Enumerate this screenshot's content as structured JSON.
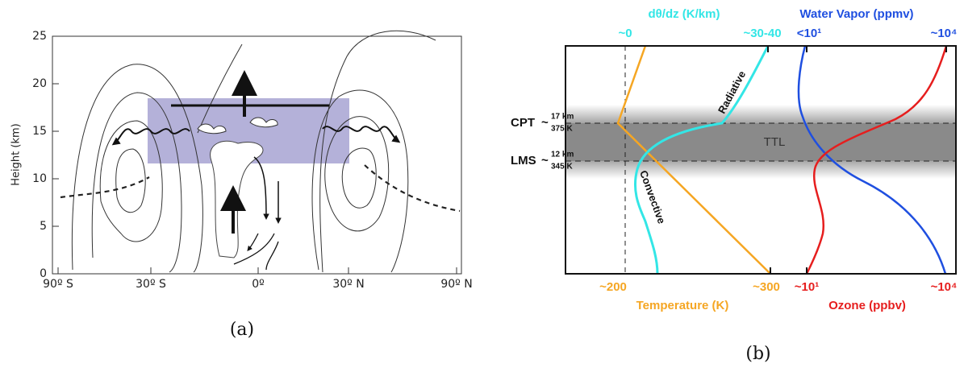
{
  "panel_a": {
    "y_label": "Height (km)",
    "y_ticks": [
      0,
      5,
      10,
      15,
      20,
      25
    ],
    "x_ticks": [
      "90º S",
      "30º S",
      "0º",
      "30º N",
      "90º N"
    ],
    "caption": "(a)"
  },
  "panel_b": {
    "top_left_title": "dθ/dz (K/km)",
    "top_right_title": "Water Vapor (ppmv)",
    "top_ticks": [
      "~0",
      "~30-40",
      "<10¹",
      "~10⁴"
    ],
    "bottom_ticks": [
      "~200",
      "~300",
      "~10¹",
      "~10⁴"
    ],
    "bottom_left_title": "Temperature (K)",
    "bottom_right_title": "Ozone (ppbv)",
    "levels": [
      {
        "name": "CPT",
        "tilde": "~",
        "height": "17 km",
        "theta": "375 K"
      },
      {
        "name": "LMS",
        "tilde": "~",
        "height": "12 km",
        "theta": "345 K"
      }
    ],
    "layer": "TTL",
    "curve_labels": [
      "Radiative",
      "Convective"
    ],
    "caption": "(b)"
  }
}
